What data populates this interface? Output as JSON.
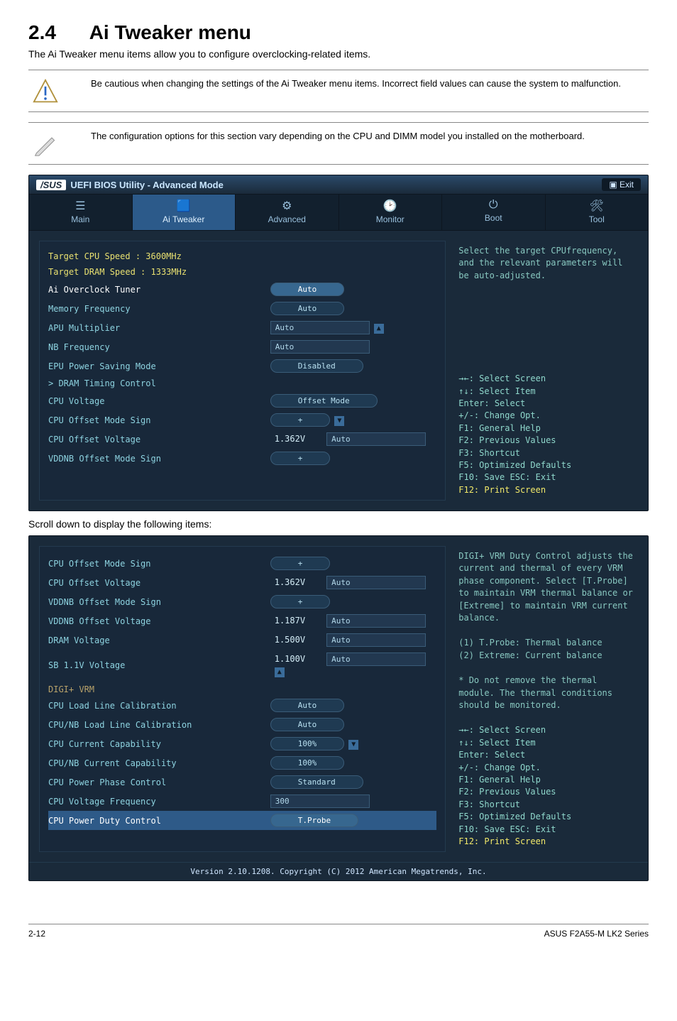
{
  "page": {
    "section_number": "2.4",
    "section_title": "Ai Tweaker menu",
    "intro": "The Ai Tweaker menu items allow you to configure overclocking-related items.",
    "caution": "Be cautious when changing the settings of the Ai Tweaker menu items. Incorrect field values can cause the system to malfunction.",
    "note": "The configuration options for this section vary depending on the CPU and DIMM model you installed on the motherboard.",
    "scroll_hint": "Scroll down to display the following items:"
  },
  "bios": {
    "logo_pre": "/SUS",
    "logo_text": "UEFI BIOS Utility - Advanced Mode",
    "exit_label": "Exit",
    "tabs": [
      {
        "icon": "☰",
        "label": "Main"
      },
      {
        "icon": "🟦",
        "label": "Ai Tweaker"
      },
      {
        "icon": "⚙",
        "label": "Advanced"
      },
      {
        "icon": "🕑",
        "label": "Monitor"
      },
      {
        "icon": "⏻",
        "label": "Boot"
      },
      {
        "icon": "🛠",
        "label": "Tool"
      }
    ],
    "target_cpu": "Target CPU Speed : 3600MHz",
    "target_dram": "Target DRAM Speed : 1333MHz",
    "screen1": [
      {
        "k": "Ai Overclock Tuner",
        "v": "Auto",
        "pill": true,
        "sel": true
      },
      {
        "k": "Memory Frequency",
        "v": "Auto",
        "pill": true
      },
      {
        "k": "APU Multiplier",
        "v": "Auto",
        "inp": true,
        "up": true
      },
      {
        "k": "NB Frequency",
        "v": "Auto",
        "inp": true
      },
      {
        "k": "EPU Power Saving Mode",
        "v": "Disabled",
        "pill": true
      },
      {
        "k": "> DRAM Timing Control",
        "v": ""
      },
      {
        "k": "CPU Voltage",
        "v": "Offset Mode",
        "pill": true
      },
      {
        "k": "CPU Offset Mode Sign",
        "v": "+",
        "pill": true,
        "dn": true
      },
      {
        "k": "  CPU Offset Voltage",
        "v": "Auto",
        "mid": "1.362V",
        "inp": true
      },
      {
        "k": "VDDNB Offset Mode Sign",
        "v": "+",
        "pill": true
      }
    ],
    "help1": "Select the target CPUfrequency, and the relevant parameters will be auto-adjusted.",
    "nav": [
      "→←: Select Screen",
      "↑↓: Select Item",
      "Enter: Select",
      "+/-: Change Opt.",
      "F1: General Help",
      "F2: Previous Values",
      "F3: Shortcut",
      "F5: Optimized Defaults",
      "F10: Save  ESC: Exit"
    ],
    "nav_print": "F12: Print Screen",
    "screen2": [
      {
        "k": "CPU Offset Mode Sign",
        "v": "+",
        "pill": true
      },
      {
        "k": "  CPU Offset Voltage",
        "v": "Auto",
        "mid": "1.362V",
        "inp": true
      },
      {
        "k": "VDDNB Offset Mode Sign",
        "v": "+",
        "pill": true
      },
      {
        "k": "  VDDNB Offset Voltage",
        "v": "Auto",
        "mid": "1.187V",
        "inp": true
      },
      {
        "k": "DRAM Voltage",
        "v": "Auto",
        "mid": "1.500V",
        "inp": true
      },
      {
        "k": "SB 1.1V Voltage",
        "v": "Auto",
        "mid": "1.100V",
        "inp": true,
        "up": true
      }
    ],
    "digi_label": "DIGI+ VRM",
    "screen2b": [
      {
        "k": "CPU Load Line Calibration",
        "v": "Auto",
        "pill": true
      },
      {
        "k": "CPU/NB Load Line Calibration",
        "v": "Auto",
        "pill": true
      },
      {
        "k": "CPU Current Capability",
        "v": "100%",
        "pill": true,
        "dn": true
      },
      {
        "k": "CPU/NB Current Capability",
        "v": "100%",
        "pill": true
      },
      {
        "k": "CPU Power Phase Control",
        "v": "Standard",
        "pill": true
      },
      {
        "k": "CPU Voltage Frequency",
        "v": "300",
        "inp": true
      },
      {
        "k": "CPU Power Duty Control",
        "v": "T.Probe",
        "pill": true,
        "selrow": true
      }
    ],
    "help2": "DIGI+ VRM Duty Control adjusts the current and thermal of every VRM phase component. Select [T.Probe] to maintain VRM thermal balance or [Extreme] to maintain VRM current balance.",
    "help2b": "(1) T.Probe: Thermal balance\n(2) Extreme: Current balance",
    "help2c": "* Do not remove the thermal module. The thermal conditions should be monitored.",
    "version": "Version 2.10.1208. Copyright (C) 2012 American Megatrends, Inc."
  },
  "footer": {
    "left": "2-12",
    "right": "ASUS F2A55-M LK2 Series"
  }
}
